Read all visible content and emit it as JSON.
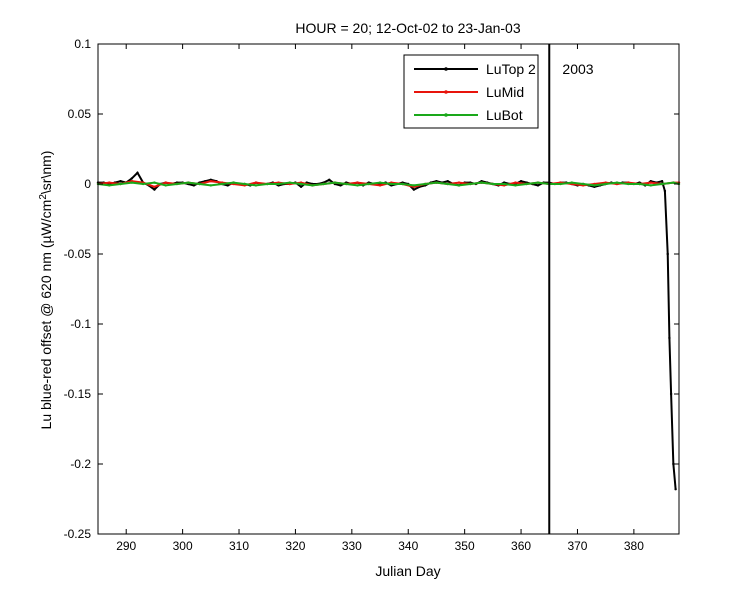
{
  "chart_data": {
    "type": "line",
    "title": "HOUR = 20; 12-Oct-02 to 23-Jan-03",
    "xlabel": "Julian Day",
    "ylabel_parts": [
      "Lu blue-red offset @ 620 nm (",
      "µ",
      "W/cm",
      "2",
      "\\sr\\nm)"
    ],
    "xlim": [
      285,
      388
    ],
    "ylim": [
      -0.25,
      0.1
    ],
    "xticks": [
      290,
      300,
      310,
      320,
      330,
      340,
      350,
      360,
      370,
      380
    ],
    "yticks": [
      -0.25,
      -0.2,
      -0.15,
      -0.1,
      -0.05,
      0,
      0.05,
      0.1
    ],
    "ytick_labels": [
      "-0.25",
      "-0.2",
      "-0.15",
      "-0.1",
      "-0.05",
      "0",
      "0.05",
      "0.1"
    ],
    "grid": false,
    "legend_position": "top-right",
    "vline": {
      "x": 365,
      "label": "2003"
    },
    "series": [
      {
        "name": "LuTop 2",
        "color": "#000000",
        "x": [
          285,
          286,
          287,
          288,
          289,
          290,
          291,
          292,
          293,
          294,
          295,
          296,
          297,
          298,
          299,
          300,
          301,
          302,
          303,
          304,
          305,
          306,
          307,
          308,
          309,
          310,
          311,
          312,
          313,
          314,
          315,
          316,
          317,
          318,
          319,
          320,
          321,
          322,
          323,
          324,
          325,
          326,
          327,
          328,
          329,
          330,
          331,
          332,
          333,
          334,
          335,
          336,
          337,
          338,
          339,
          340,
          341,
          342,
          343,
          344,
          345,
          346,
          347,
          348,
          349,
          350,
          351,
          352,
          353,
          354,
          355,
          356,
          357,
          358,
          359,
          360,
          361,
          362,
          363,
          364,
          365,
          366,
          367,
          368,
          369,
          370,
          371,
          372,
          373,
          374,
          375,
          376,
          377,
          378,
          379,
          380,
          381,
          382,
          383,
          384,
          385,
          385.5,
          386,
          386.3,
          386.6,
          387,
          387.4
        ],
        "y": [
          0.001,
          0.001,
          0.0,
          0.001,
          0.002,
          0.001,
          0.004,
          0.008,
          0.001,
          -0.001,
          -0.004,
          0.0,
          0.001,
          0.0,
          0.001,
          0.001,
          0.0,
          -0.001,
          0.001,
          0.002,
          0.003,
          0.002,
          0.0,
          -0.001,
          0.001,
          0.0,
          0.0,
          -0.001,
          0.001,
          0.0,
          0.0,
          0.001,
          -0.001,
          0.0,
          0.0,
          0.001,
          -0.002,
          0.001,
          0.0,
          0.0,
          0.001,
          0.003,
          0.0,
          -0.001,
          0.001,
          0.0,
          0.001,
          -0.001,
          0.001,
          0.0,
          0.0,
          0.001,
          -0.001,
          0.0,
          0.001,
          0.0,
          -0.004,
          -0.002,
          -0.001,
          0.001,
          0.002,
          0.001,
          0.002,
          0.0,
          -0.001,
          0.001,
          0.001,
          0.0,
          0.002,
          0.001,
          0.0,
          -0.001,
          0.001,
          0.0,
          0.0,
          0.002,
          0.001,
          0.0,
          -0.001,
          0.001,
          0.001,
          0.0,
          0.001,
          0.001,
          0.0,
          -0.001,
          0.0,
          -0.001,
          -0.002,
          -0.001,
          0.0,
          0.001,
          0.0,
          0.001,
          0.001,
          0.0,
          0.001,
          -0.001,
          0.002,
          0.001,
          0.002,
          -0.005,
          -0.05,
          -0.11,
          -0.15,
          -0.2,
          -0.218
        ]
      },
      {
        "name": "LuMid",
        "color": "#e8140c",
        "x": [
          285,
          287,
          289,
          291,
          293,
          295,
          297,
          299,
          301,
          303,
          305,
          307,
          309,
          311,
          313,
          315,
          317,
          319,
          321,
          323,
          325,
          327,
          329,
          331,
          333,
          335,
          337,
          339,
          341,
          343,
          345,
          347,
          349,
          351,
          353,
          355,
          357,
          359,
          361,
          363,
          365,
          367,
          369,
          371,
          373,
          375,
          377,
          379,
          381,
          383,
          385,
          387,
          388
        ],
        "y": [
          0.0,
          0.001,
          0.0,
          0.002,
          0.001,
          -0.002,
          0.001,
          0.0,
          0.001,
          0.0,
          0.002,
          0.001,
          0.0,
          -0.001,
          0.001,
          0.0,
          0.001,
          0.0,
          0.001,
          -0.001,
          0.0,
          0.001,
          0.0,
          0.001,
          0.0,
          -0.001,
          0.001,
          0.0,
          -0.002,
          0.0,
          0.001,
          0.0,
          0.001,
          0.0,
          0.001,
          0.0,
          -0.001,
          0.001,
          0.0,
          0.001,
          0.0,
          0.001,
          0.0,
          -0.001,
          0.0,
          0.001,
          0.0,
          0.001,
          0.0,
          0.001,
          0.0,
          0.001,
          0.001
        ]
      },
      {
        "name": "LuBot",
        "color": "#1aa81a",
        "x": [
          285,
          287,
          289,
          291,
          293,
          295,
          297,
          299,
          301,
          303,
          305,
          307,
          309,
          311,
          313,
          315,
          317,
          319,
          321,
          323,
          325,
          327,
          329,
          331,
          333,
          335,
          337,
          339,
          341,
          343,
          345,
          347,
          349,
          351,
          353,
          355,
          357,
          359,
          361,
          363,
          365,
          367,
          369,
          371,
          373,
          375,
          377,
          379,
          381,
          383,
          385,
          387,
          388
        ],
        "y": [
          0.0,
          -0.001,
          0.0,
          0.001,
          0.0,
          0.001,
          -0.001,
          0.0,
          0.001,
          0.0,
          -0.001,
          0.0,
          0.001,
          0.0,
          -0.001,
          0.0,
          0.0,
          0.001,
          0.0,
          -0.001,
          0.0,
          0.001,
          0.0,
          -0.001,
          0.0,
          0.001,
          0.0,
          0.0,
          -0.001,
          0.0,
          0.001,
          0.0,
          -0.001,
          0.0,
          0.001,
          0.0,
          0.0,
          -0.001,
          0.0,
          0.001,
          0.0,
          0.0,
          0.001,
          0.0,
          -0.001,
          0.0,
          0.001,
          0.0,
          0.0,
          -0.001,
          0.0,
          0.001,
          0.0
        ]
      }
    ]
  }
}
